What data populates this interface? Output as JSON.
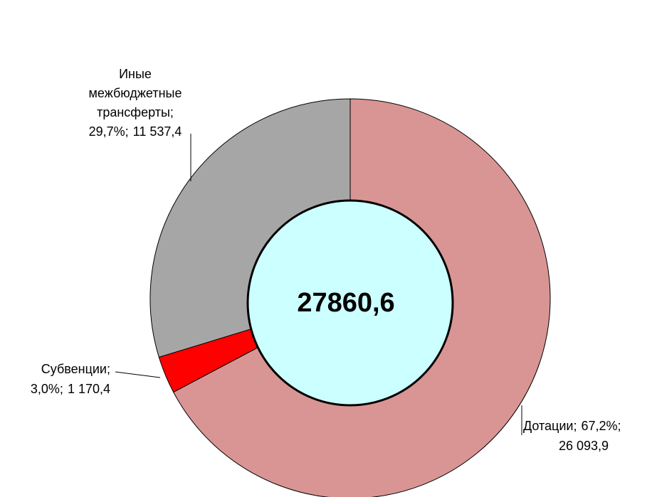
{
  "chart_data": {
    "type": "donut",
    "categories": [
      "Дотации;",
      "Субвенции;",
      "Иные межбюджетные трансферты;"
    ],
    "values": [
      26093.9,
      1170.4,
      11537.4
    ],
    "value_labels": [
      "26 093,9",
      "1 170,4",
      "11 537,4"
    ],
    "percents": [
      67.2,
      3.0,
      29.7
    ],
    "percent_labels": [
      "67,2%;",
      "3,0%;",
      "29,7%;"
    ],
    "colors": [
      "#d99594",
      "#ff0000",
      "#a6a6a6"
    ],
    "center_label": "27860,6",
    "center_color": "#ccffff"
  }
}
